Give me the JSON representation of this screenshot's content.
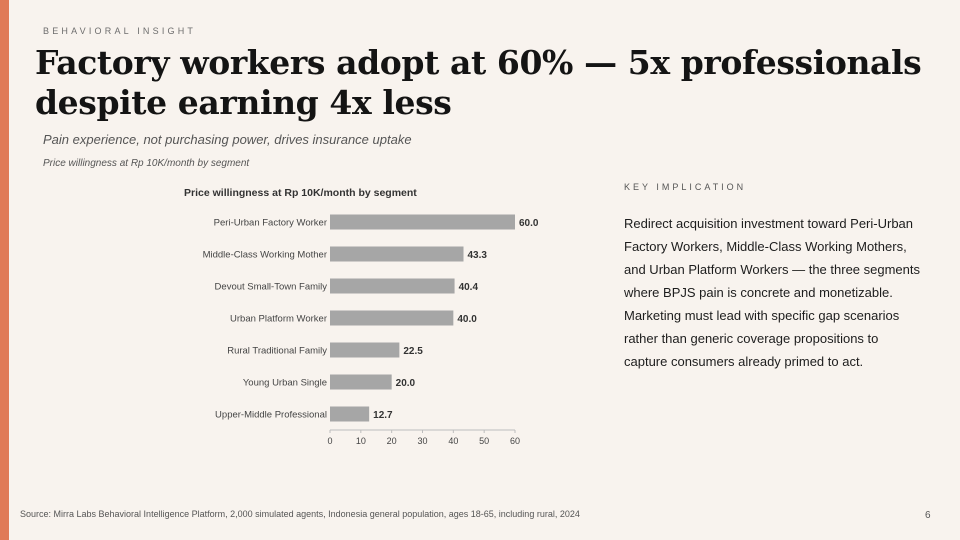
{
  "slide": {
    "eyebrow": "BEHAVIORAL INSIGHT",
    "title": "Factory workers adopt at 60% — 5x professionals despite earning 4x less",
    "subtitle": "Pain experience, not purchasing power, drives insurance uptake",
    "chart_caption": "Price willingness at Rp 10K/month by segment",
    "implication_label": "KEY IMPLICATION",
    "implication_body": "Redirect acquisition investment toward Peri-Urban Factory Workers, Middle-Class Working Mothers, and Urban Platform Workers — the three segments where BPJS pain is concrete and monetizable. Marketing must lead with specific gap scenarios rather than generic coverage propositions to capture consumers already primed to act.",
    "source": "Source: Mirra Labs Behavioral Intelligence Platform, 2,000 simulated agents, Indonesia general population, ages 18-65, including rural, 2024",
    "page_number": "6"
  },
  "colors": {
    "accent": "#e07a57",
    "bar": "#a6a6a6",
    "background": "#f8f3ee"
  },
  "chart_data": {
    "type": "bar",
    "orientation": "horizontal",
    "title": "Price willingness at Rp 10K/month by segment",
    "categories": [
      "Peri-Urban Factory Worker",
      "Middle-Class Working Mother",
      "Devout Small-Town Family",
      "Urban Platform Worker",
      "Rural Traditional Family",
      "Young Urban Single",
      "Upper-Middle Professional"
    ],
    "values": [
      60.0,
      43.3,
      40.4,
      40.0,
      22.5,
      20.0,
      12.7
    ],
    "value_labels": [
      "60.0",
      "43.3",
      "40.4",
      "40.0",
      "22.5",
      "20.0",
      "12.7"
    ],
    "xlim": [
      0,
      60
    ],
    "xticks": [
      "0",
      "10",
      "20",
      "30",
      "40",
      "50",
      "60"
    ],
    "xlabel": "",
    "ylabel": "",
    "grid": false,
    "legend": "none"
  }
}
